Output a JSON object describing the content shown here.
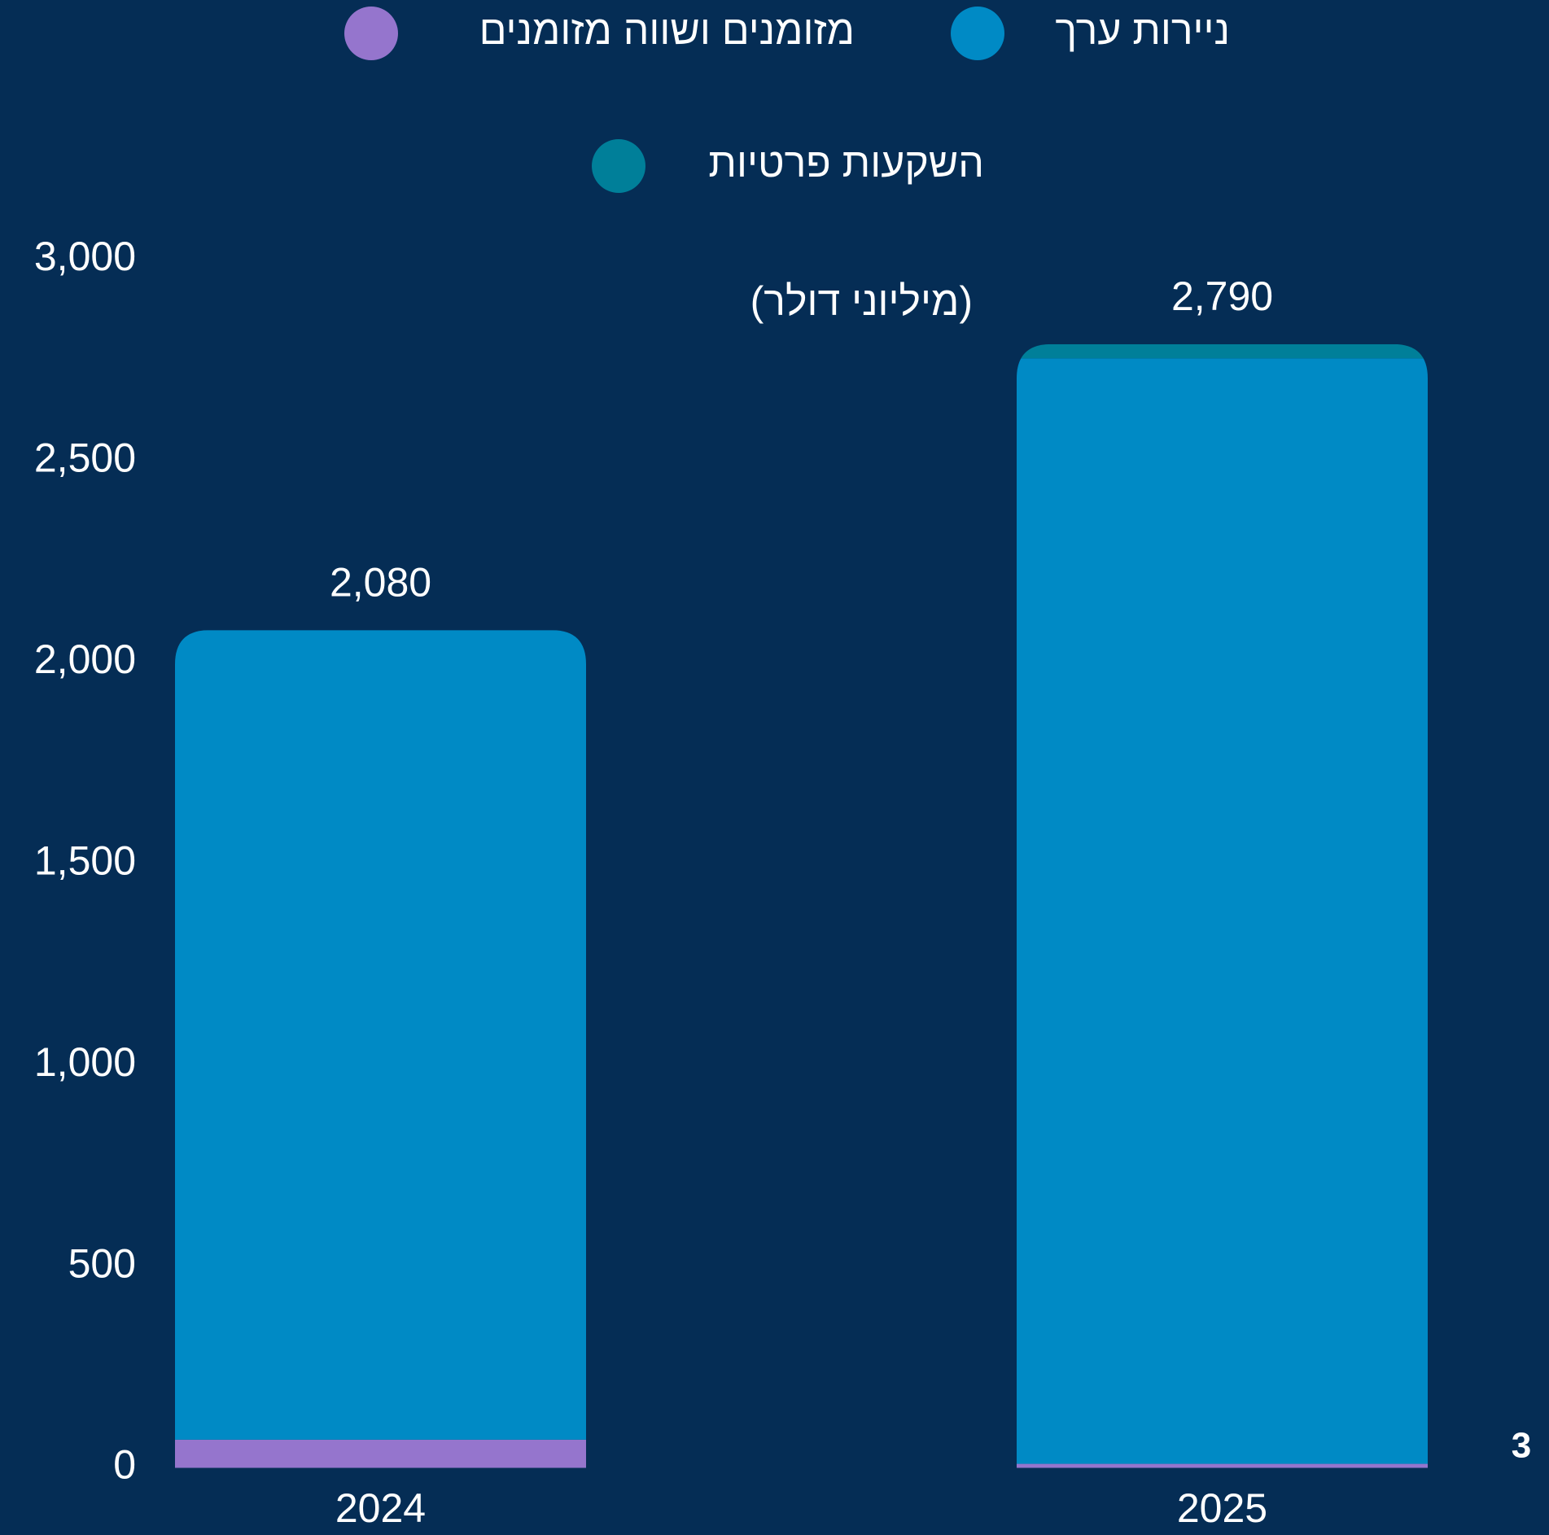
{
  "chart_data": {
    "type": "stacked_bar",
    "unit_label": "(מיליוני דולר)",
    "categories": [
      "2024",
      "2025"
    ],
    "series": [
      {
        "name": "מזומנים ושווה מזומנים",
        "color": "#9575cd",
        "values": [
          70,
          10
        ]
      },
      {
        "name": "ניירות ערך",
        "color": "#008ac5",
        "values": [
          2010,
          2745
        ]
      },
      {
        "name": "השקעות פרטיות",
        "color": "#007f99",
        "values": [
          0,
          35
        ]
      }
    ],
    "total_values": [
      2080,
      2790
    ],
    "total_labels": [
      "2,080",
      "2,790"
    ],
    "ylim": [
      0,
      3000
    ],
    "yticks": [
      0,
      500,
      {
        "value": 1000,
        "label": "1,000"
      },
      {
        "value": 1500,
        "label": "1,500"
      },
      {
        "value": 2000,
        "label": "2,000"
      },
      {
        "value": 2500,
        "label": "2,500"
      },
      {
        "value": 3000,
        "label": "3,000"
      }
    ],
    "grid": false,
    "page_number": "3"
  }
}
